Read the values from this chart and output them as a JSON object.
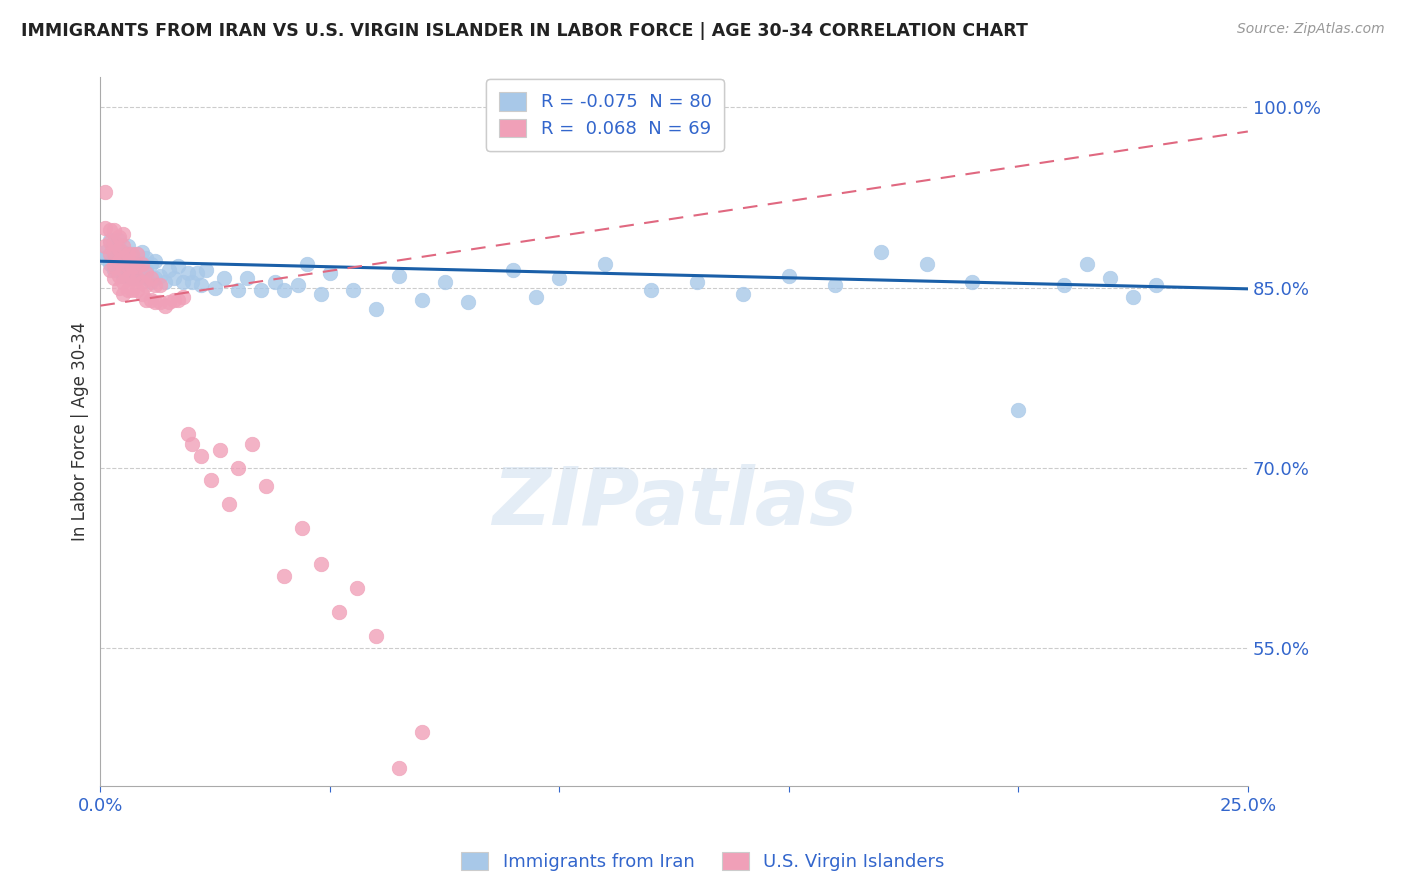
{
  "title": "IMMIGRANTS FROM IRAN VS U.S. VIRGIN ISLANDER IN LABOR FORCE | AGE 30-34 CORRELATION CHART",
  "source": "Source: ZipAtlas.com",
  "ylabel": "In Labor Force | Age 30-34",
  "xlim": [
    0.0,
    0.25
  ],
  "ylim": [
    0.435,
    1.025
  ],
  "xticks": [
    0.0,
    0.05,
    0.1,
    0.15,
    0.2,
    0.25
  ],
  "xticklabels": [
    "0.0%",
    "",
    "",
    "",
    "",
    "25.0%"
  ],
  "yticks_right": [
    0.55,
    0.7,
    0.85,
    1.0
  ],
  "ytick_labels_right": [
    "55.0%",
    "70.0%",
    "85.0%",
    "100.0%"
  ],
  "blue_color": "#a8c8e8",
  "pink_color": "#f0a0b8",
  "blue_line_color": "#1a5fa8",
  "pink_line_color": "#e06880",
  "legend_blue_label": "R = -0.075  N = 80",
  "legend_pink_label": "R =  0.068  N = 69",
  "legend1_label": "Immigrants from Iran",
  "legend2_label": "U.S. Virgin Islanders",
  "watermark": "ZIPatlas",
  "blue_scatter_x": [
    0.001,
    0.001,
    0.002,
    0.002,
    0.003,
    0.003,
    0.003,
    0.004,
    0.004,
    0.004,
    0.004,
    0.005,
    0.005,
    0.005,
    0.006,
    0.006,
    0.006,
    0.006,
    0.007,
    0.007,
    0.007,
    0.008,
    0.008,
    0.008,
    0.009,
    0.009,
    0.009,
    0.01,
    0.01,
    0.01,
    0.011,
    0.011,
    0.012,
    0.012,
    0.013,
    0.014,
    0.015,
    0.016,
    0.017,
    0.018,
    0.019,
    0.02,
    0.021,
    0.022,
    0.023,
    0.025,
    0.027,
    0.03,
    0.032,
    0.035,
    0.038,
    0.04,
    0.043,
    0.045,
    0.048,
    0.05,
    0.055,
    0.06,
    0.065,
    0.07,
    0.075,
    0.08,
    0.09,
    0.095,
    0.1,
    0.11,
    0.12,
    0.13,
    0.14,
    0.15,
    0.16,
    0.17,
    0.18,
    0.19,
    0.2,
    0.21,
    0.215,
    0.22,
    0.225,
    0.23
  ],
  "blue_scatter_y": [
    0.875,
    0.88,
    0.87,
    0.89,
    0.865,
    0.875,
    0.885,
    0.865,
    0.875,
    0.88,
    0.89,
    0.86,
    0.87,
    0.88,
    0.86,
    0.87,
    0.875,
    0.885,
    0.858,
    0.868,
    0.878,
    0.858,
    0.868,
    0.878,
    0.86,
    0.87,
    0.88,
    0.858,
    0.865,
    0.875,
    0.855,
    0.87,
    0.858,
    0.872,
    0.86,
    0.855,
    0.865,
    0.858,
    0.868,
    0.855,
    0.862,
    0.855,
    0.862,
    0.852,
    0.865,
    0.85,
    0.858,
    0.848,
    0.858,
    0.848,
    0.855,
    0.848,
    0.852,
    0.87,
    0.845,
    0.862,
    0.848,
    0.832,
    0.86,
    0.84,
    0.855,
    0.838,
    0.865,
    0.842,
    0.858,
    0.87,
    0.848,
    0.855,
    0.845,
    0.86,
    0.852,
    0.88,
    0.87,
    0.855,
    0.748,
    0.852,
    0.87,
    0.858,
    0.842,
    0.852
  ],
  "pink_scatter_x": [
    0.001,
    0.001,
    0.001,
    0.002,
    0.002,
    0.002,
    0.002,
    0.003,
    0.003,
    0.003,
    0.003,
    0.003,
    0.004,
    0.004,
    0.004,
    0.004,
    0.004,
    0.005,
    0.005,
    0.005,
    0.005,
    0.005,
    0.005,
    0.006,
    0.006,
    0.006,
    0.006,
    0.007,
    0.007,
    0.007,
    0.007,
    0.008,
    0.008,
    0.008,
    0.008,
    0.009,
    0.009,
    0.009,
    0.01,
    0.01,
    0.01,
    0.011,
    0.011,
    0.012,
    0.012,
    0.013,
    0.013,
    0.014,
    0.015,
    0.016,
    0.017,
    0.018,
    0.019,
    0.02,
    0.022,
    0.024,
    0.026,
    0.028,
    0.03,
    0.033,
    0.036,
    0.04,
    0.044,
    0.048,
    0.052,
    0.056,
    0.06,
    0.065,
    0.07
  ],
  "pink_scatter_y": [
    0.885,
    0.9,
    0.93,
    0.865,
    0.878,
    0.888,
    0.898,
    0.858,
    0.868,
    0.878,
    0.888,
    0.898,
    0.85,
    0.86,
    0.872,
    0.882,
    0.892,
    0.845,
    0.855,
    0.865,
    0.875,
    0.885,
    0.895,
    0.848,
    0.858,
    0.868,
    0.878,
    0.848,
    0.858,
    0.868,
    0.878,
    0.848,
    0.858,
    0.868,
    0.878,
    0.845,
    0.855,
    0.87,
    0.84,
    0.852,
    0.862,
    0.84,
    0.858,
    0.838,
    0.852,
    0.838,
    0.852,
    0.835,
    0.838,
    0.84,
    0.84,
    0.842,
    0.728,
    0.72,
    0.71,
    0.69,
    0.715,
    0.67,
    0.7,
    0.72,
    0.685,
    0.61,
    0.65,
    0.62,
    0.58,
    0.6,
    0.56,
    0.45,
    0.48
  ],
  "pink_trend_x": [
    0.0,
    0.25
  ],
  "pink_trend_y": [
    0.835,
    0.98
  ],
  "blue_trend_x": [
    0.0,
    0.25
  ],
  "blue_trend_y": [
    0.872,
    0.849
  ]
}
